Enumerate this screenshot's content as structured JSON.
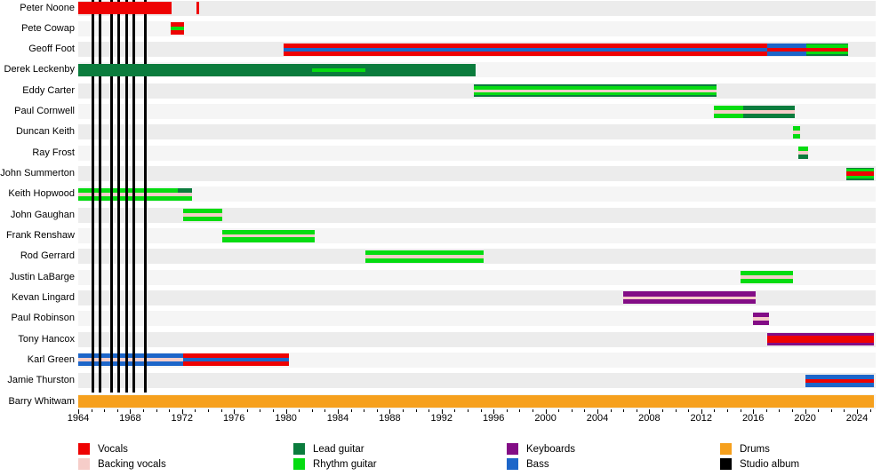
{
  "chart_data": {
    "type": "bar",
    "variant": "band-members-timeline",
    "title": "",
    "x_axis": {
      "start": 1964,
      "end": 2025.4,
      "label_ticks": [
        1964,
        1968,
        1972,
        1976,
        1980,
        1984,
        1988,
        1992,
        1996,
        2000,
        2004,
        2008,
        2012,
        2016,
        2020,
        2024
      ],
      "minor_tick_every_years": 1
    },
    "colors": {
      "red": "#ee0202",
      "pink": "#f6cdc9",
      "lead": "#0b7c3d",
      "rhythm": "#05dc11",
      "keys": "#830d86",
      "bass": "#1d66c9",
      "drums": "#f6a01d",
      "album": "#000000",
      "track_even": "#ececec",
      "track_odd": "#f5f5f5"
    },
    "album_lines": {
      "legend_label": "Studio album",
      "color": "album",
      "years": [
        1965.1,
        1965.7,
        1966.6,
        1967.15,
        1967.75,
        1968.3,
        1969.2
      ]
    },
    "members": [
      {
        "name": "Peter Noone",
        "segments": [
          {
            "from": 1964.0,
            "till": 1971.2,
            "stripes": [
              [
                "red",
                1
              ]
            ]
          },
          {
            "from": 1973.1,
            "till": 1973.3,
            "stripes": [
              [
                "red",
                1
              ]
            ]
          }
        ]
      },
      {
        "name": "Pete Cowap",
        "segments": [
          {
            "from": 1971.1,
            "till": 1972.15,
            "stripes": [
              [
                "red",
                0.36
              ],
              [
                "rhythm",
                0.28
              ],
              [
                "red",
                0.36
              ]
            ]
          }
        ]
      },
      {
        "name": "Geoff Foot",
        "segments": [
          {
            "from": 1979.8,
            "till": 2017.1,
            "stripes": [
              [
                "red",
                0.36
              ],
              [
                "bass",
                0.28
              ],
              [
                "red",
                0.36
              ]
            ]
          },
          {
            "from": 2017.1,
            "till": 2020.1,
            "stripes": [
              [
                "bass",
                0.36
              ],
              [
                "red",
                0.28
              ],
              [
                "bass",
                0.36
              ]
            ]
          },
          {
            "from": 2020.1,
            "till": 2023.3,
            "stripes": [
              [
                "lead",
                0.13
              ],
              [
                "rhythm",
                0.22
              ],
              [
                "red",
                0.3
              ],
              [
                "rhythm",
                0.22
              ],
              [
                "lead",
                0.13
              ]
            ]
          }
        ]
      },
      {
        "name": "Derek Leckenby",
        "segments": [
          {
            "from": 1964.0,
            "till": 1982.0,
            "stripes": [
              [
                "lead",
                1
              ]
            ]
          },
          {
            "from": 1982.0,
            "till": 1986.1,
            "stripes": [
              [
                "lead",
                0.36
              ],
              [
                "rhythm",
                0.28
              ],
              [
                "lead",
                0.36
              ]
            ]
          },
          {
            "from": 1986.1,
            "till": 1994.6,
            "stripes": [
              [
                "lead",
                1
              ]
            ]
          }
        ]
      },
      {
        "name": "Eddy Carter",
        "segments": [
          {
            "from": 1994.5,
            "till": 2013.2,
            "stripes": [
              [
                "lead",
                0.13
              ],
              [
                "rhythm",
                0.25
              ],
              [
                "pink",
                0.24
              ],
              [
                "rhythm",
                0.25
              ],
              [
                "lead",
                0.13
              ]
            ]
          }
        ]
      },
      {
        "name": "Paul Cornwell",
        "segments": [
          {
            "from": 2013.0,
            "till": 2015.2,
            "stripes": [
              [
                "rhythm",
                0.36
              ],
              [
                "pink",
                0.28
              ],
              [
                "rhythm",
                0.36
              ]
            ]
          },
          {
            "from": 2015.2,
            "till": 2019.2,
            "stripes": [
              [
                "lead",
                0.36
              ],
              [
                "pink",
                0.28
              ],
              [
                "lead",
                0.36
              ]
            ]
          }
        ]
      },
      {
        "name": "Duncan Keith",
        "segments": [
          {
            "from": 2019.1,
            "till": 2019.6,
            "stripes": [
              [
                "rhythm",
                0.36
              ],
              [
                "pink",
                0.28
              ],
              [
                "rhythm",
                0.36
              ]
            ]
          }
        ]
      },
      {
        "name": "Ray Frost",
        "segments": [
          {
            "from": 2019.5,
            "till": 2020.2,
            "stripes": [
              [
                "rhythm",
                0.36
              ],
              [
                "pink",
                0.28
              ],
              [
                "lead",
                0.36
              ]
            ]
          }
        ]
      },
      {
        "name": "John Summerton",
        "segments": [
          {
            "from": 2023.2,
            "till": 2025.3,
            "stripes": [
              [
                "lead",
                0.13
              ],
              [
                "rhythm",
                0.22
              ],
              [
                "red",
                0.3
              ],
              [
                "rhythm",
                0.22
              ],
              [
                "lead",
                0.13
              ]
            ]
          }
        ]
      },
      {
        "name": "Keith Hopwood",
        "bar_under_lines": true,
        "segments": [
          {
            "from": 1964.0,
            "till": 1971.7,
            "stripes": [
              [
                "rhythm",
                0.36
              ],
              [
                "pink",
                0.28
              ],
              [
                "rhythm",
                0.36
              ]
            ]
          },
          {
            "from": 1971.7,
            "till": 1972.8,
            "stripes": [
              [
                "lead",
                0.36
              ],
              [
                "pink",
                0.28
              ],
              [
                "rhythm",
                0.36
              ]
            ]
          }
        ]
      },
      {
        "name": "John Gaughan",
        "segments": [
          {
            "from": 1972.1,
            "till": 1975.1,
            "stripes": [
              [
                "rhythm",
                0.36
              ],
              [
                "pink",
                0.28
              ],
              [
                "rhythm",
                0.36
              ]
            ]
          }
        ]
      },
      {
        "name": "Frank Renshaw",
        "segments": [
          {
            "from": 1975.1,
            "till": 1982.2,
            "stripes": [
              [
                "rhythm",
                0.36
              ],
              [
                "pink",
                0.28
              ],
              [
                "rhythm",
                0.36
              ]
            ]
          }
        ]
      },
      {
        "name": "Rod Gerrard",
        "segments": [
          {
            "from": 1986.1,
            "till": 1995.2,
            "stripes": [
              [
                "rhythm",
                0.36
              ],
              [
                "pink",
                0.28
              ],
              [
                "rhythm",
                0.36
              ]
            ]
          }
        ]
      },
      {
        "name": "Justin LaBarge",
        "segments": [
          {
            "from": 2015.0,
            "till": 2019.1,
            "stripes": [
              [
                "rhythm",
                0.36
              ],
              [
                "pink",
                0.28
              ],
              [
                "rhythm",
                0.36
              ]
            ]
          }
        ]
      },
      {
        "name": "Kevan Lingard",
        "segments": [
          {
            "from": 2006.0,
            "till": 2016.2,
            "stripes": [
              [
                "keys",
                0.36
              ],
              [
                "pink",
                0.28
              ],
              [
                "keys",
                0.36
              ]
            ]
          }
        ]
      },
      {
        "name": "Paul Robinson",
        "segments": [
          {
            "from": 2016.0,
            "till": 2017.2,
            "stripes": [
              [
                "keys",
                0.36
              ],
              [
                "pink",
                0.28
              ],
              [
                "keys",
                0.36
              ]
            ]
          }
        ]
      },
      {
        "name": "Tony Hancox",
        "segments": [
          {
            "from": 2017.1,
            "till": 2025.3,
            "stripes": [
              [
                "keys",
                0.21
              ],
              [
                "red",
                0.58
              ],
              [
                "keys",
                0.21
              ]
            ]
          }
        ]
      },
      {
        "name": "Karl Green",
        "bar_under_lines": true,
        "segments": [
          {
            "from": 1964.0,
            "till": 1972.1,
            "stripes": [
              [
                "bass",
                0.36
              ],
              [
                "pink",
                0.28
              ],
              [
                "bass",
                0.36
              ]
            ]
          },
          {
            "from": 1972.1,
            "till": 1980.2,
            "stripes": [
              [
                "red",
                0.36
              ],
              [
                "bass",
                0.28
              ],
              [
                "red",
                0.36
              ]
            ]
          }
        ]
      },
      {
        "name": "Jamie Thurston",
        "segments": [
          {
            "from": 2020.0,
            "till": 2025.3,
            "stripes": [
              [
                "bass",
                0.36
              ],
              [
                "red",
                0.28
              ],
              [
                "bass",
                0.36
              ]
            ]
          }
        ]
      },
      {
        "name": "Barry Whitwam",
        "segments": [
          {
            "from": 1964.0,
            "till": 2025.3,
            "stripes": [
              [
                "drums",
                1
              ]
            ]
          }
        ]
      }
    ],
    "legend": [
      {
        "label": "Vocals",
        "color": "red",
        "col": 0,
        "row": 0
      },
      {
        "label": "Backing vocals",
        "color": "pink",
        "col": 0,
        "row": 1
      },
      {
        "label": "Lead guitar",
        "color": "lead",
        "col": 1,
        "row": 0
      },
      {
        "label": "Rhythm guitar",
        "color": "rhythm",
        "col": 1,
        "row": 1
      },
      {
        "label": "Keyboards",
        "color": "keys",
        "col": 2,
        "row": 0
      },
      {
        "label": "Bass",
        "color": "bass",
        "col": 2,
        "row": 1
      },
      {
        "label": "Drums",
        "color": "drums",
        "col": 3,
        "row": 0
      },
      {
        "label": "Studio album",
        "color": "album",
        "col": 3,
        "row": 1
      }
    ]
  }
}
